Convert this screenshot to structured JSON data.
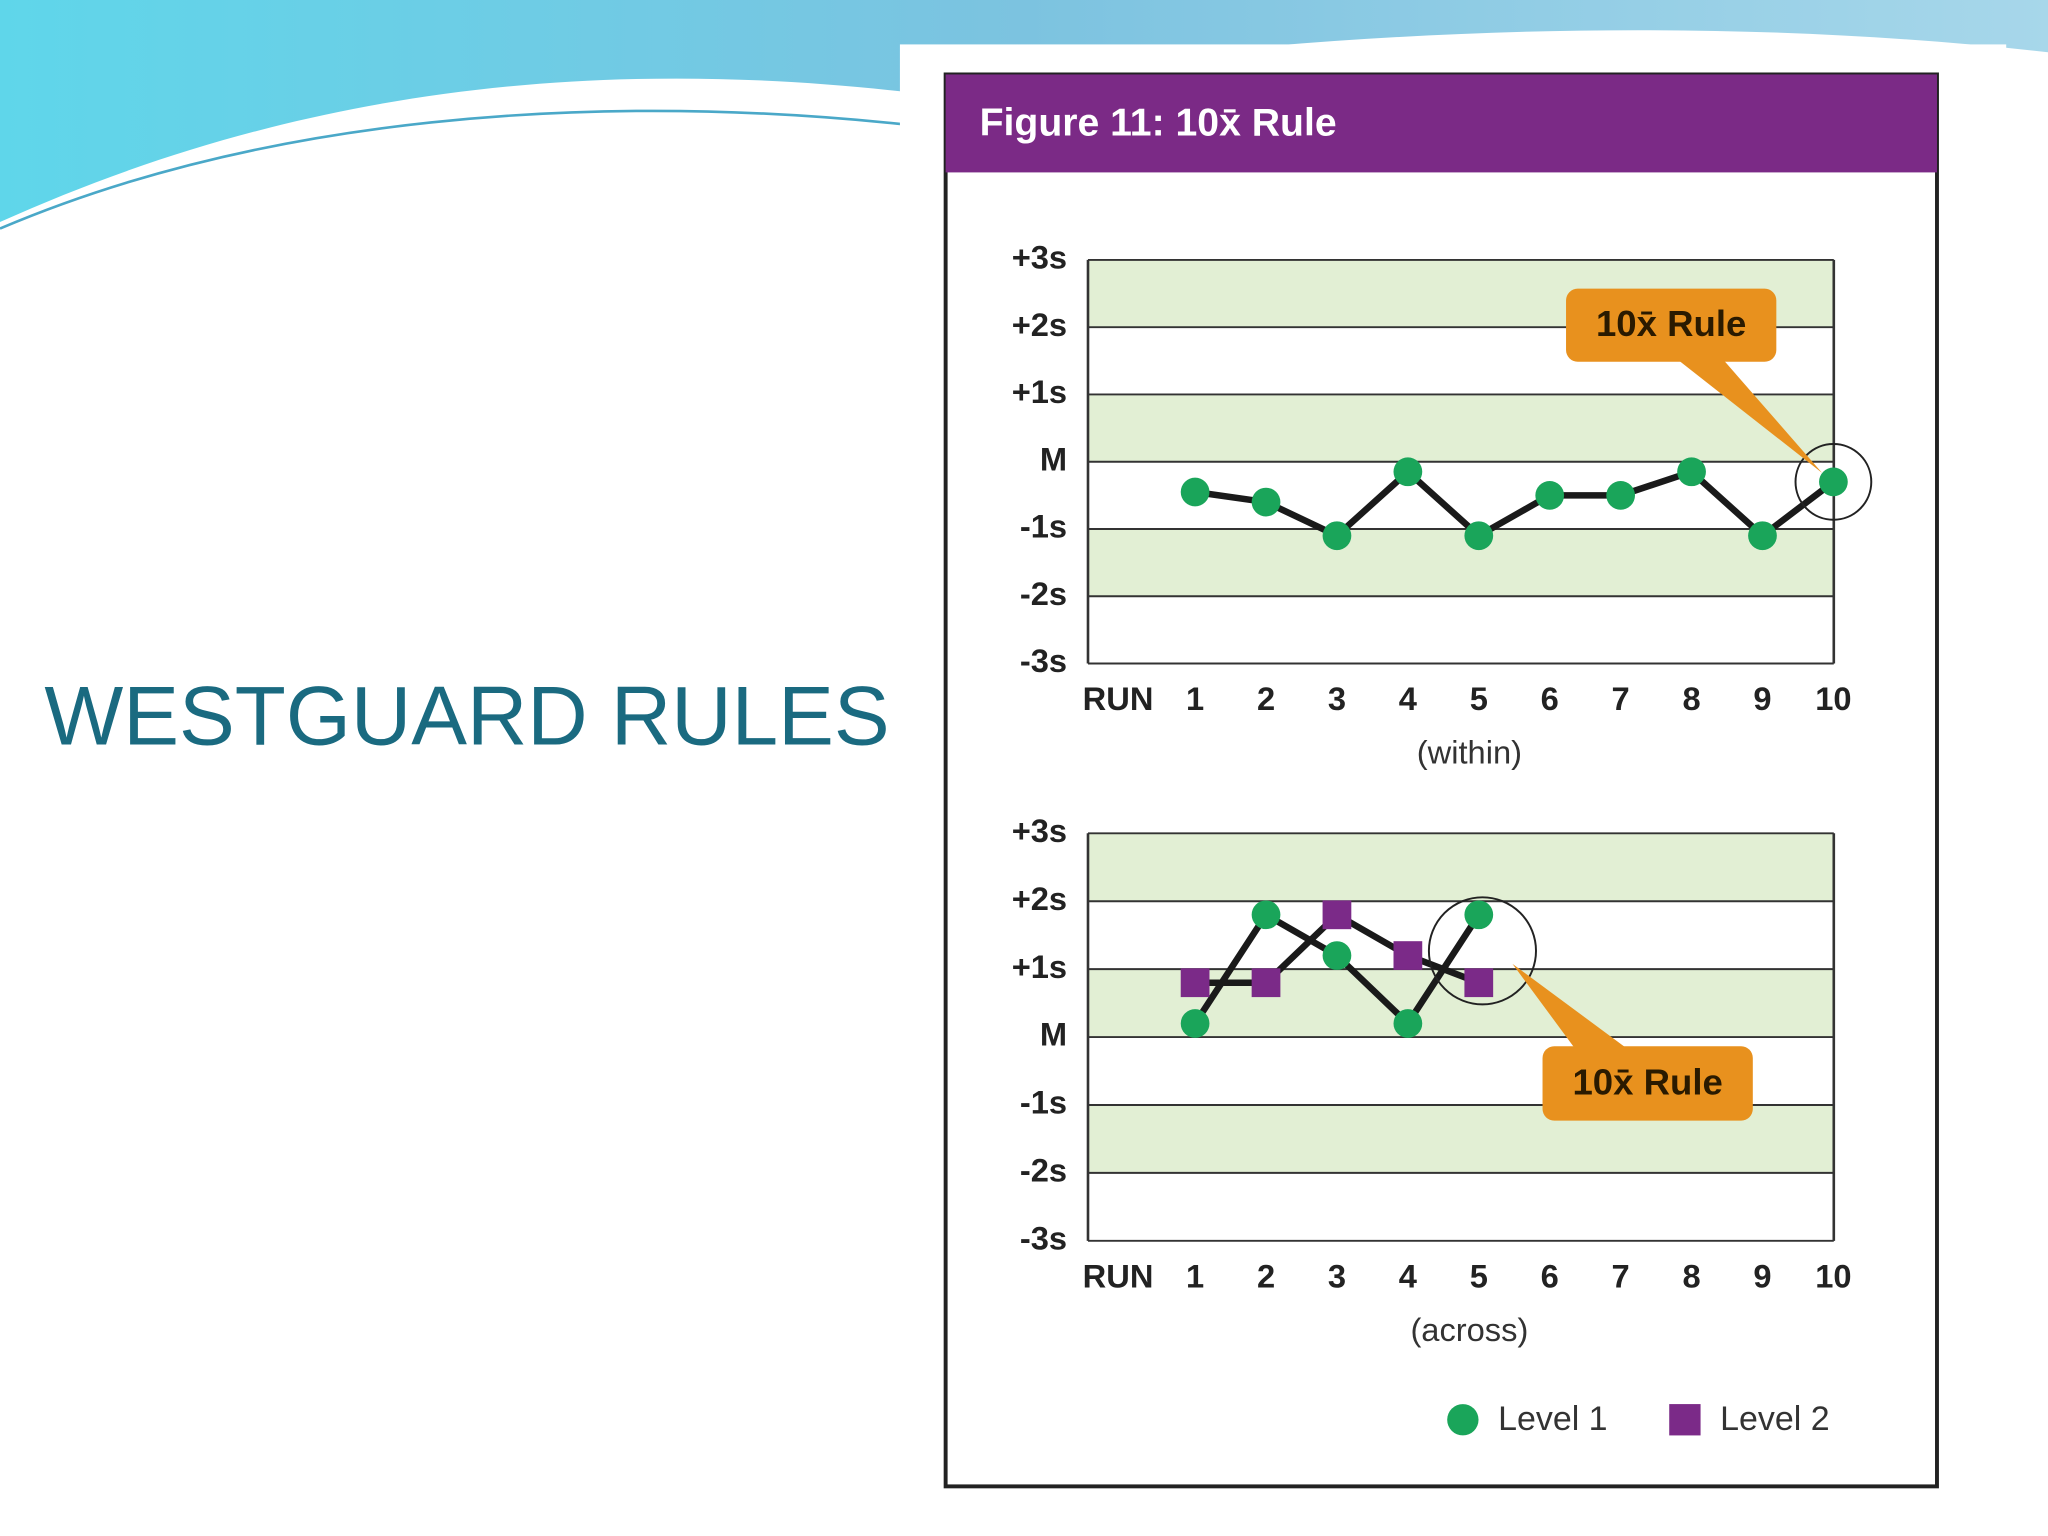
{
  "slide_title": "WESTGUARD RULES",
  "figure_title": "Figure 11: 10x̄ Rule",
  "chart_data": [
    {
      "type": "line",
      "categories_label": "RUN",
      "categories": [
        "1",
        "2",
        "3",
        "4",
        "5",
        "6",
        "7",
        "8",
        "9",
        "10"
      ],
      "x_label": "(within)",
      "annotation": "10x̄ Rule",
      "ylim": [
        -3,
        3
      ],
      "yticks": [
        {
          "value": 3,
          "label": "+3s"
        },
        {
          "value": 2,
          "label": "+2s"
        },
        {
          "value": 1,
          "label": "+1s"
        },
        {
          "value": 0,
          "label": "M"
        },
        {
          "value": -1,
          "label": "-1s"
        },
        {
          "value": -2,
          "label": "-2s"
        },
        {
          "value": -3,
          "label": "-3s"
        }
      ],
      "series": [
        {
          "color": "#1aa55a",
          "values": [
            -0.45,
            -0.6,
            -1.1,
            -0.15,
            -1.1,
            -0.5,
            -0.5,
            -0.15,
            -1.1,
            -0.3
          ]
        }
      ]
    },
    {
      "type": "line",
      "categories_label": "RUN",
      "categories": [
        "1",
        "2",
        "3",
        "4",
        "5",
        "6",
        "7",
        "8",
        "9",
        "10"
      ],
      "x_label": "(across)",
      "annotation": "10x̄ Rule",
      "ylim": [
        -3,
        3
      ],
      "yticks": [
        {
          "value": 3,
          "label": "+3s"
        },
        {
          "value": 2,
          "label": "+2s"
        },
        {
          "value": 1,
          "label": "+1s"
        },
        {
          "value": 0,
          "label": "M"
        },
        {
          "value": -1,
          "label": "-1s"
        },
        {
          "value": -2,
          "label": "-2s"
        },
        {
          "value": -3,
          "label": "-3s"
        }
      ],
      "series": [
        {
          "name": "Level 1",
          "color": "#1aa55a",
          "values": [
            0.2,
            1.8,
            1.2,
            0.2,
            1.8,
            null,
            null,
            null,
            null,
            null
          ]
        },
        {
          "name": "Level 2",
          "color": "#7b2a88",
          "values": [
            0.8,
            0.8,
            1.8,
            1.2,
            0.8,
            null,
            null,
            null,
            null,
            null
          ]
        }
      ]
    }
  ]
}
